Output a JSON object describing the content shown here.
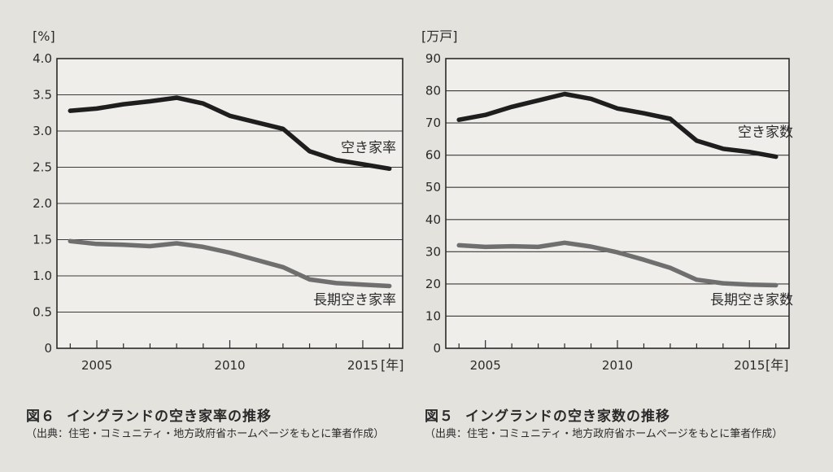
{
  "chart_data": [
    {
      "type": "line",
      "figure_number": "図６",
      "title": "イングランドの空き家率の推移",
      "source_note": "（出典：住宅・コミュニティ・地方政府省ホームページをもとに筆者作成）",
      "ylabel": "[%]",
      "xlabel": "[年]",
      "ylim": [
        0,
        4.0
      ],
      "yticks": [
        "0",
        "0.5",
        "1.0",
        "1.5",
        "2.0",
        "2.5",
        "3.0",
        "3.5",
        "4.0"
      ],
      "xlim": [
        2003.5,
        2016.5
      ],
      "xticks": [
        {
          "value": 2005,
          "label": "2005"
        },
        {
          "value": 2010,
          "label": "2010"
        },
        {
          "value": 2015,
          "label": "2015"
        }
      ],
      "x": [
        2004,
        2005,
        2006,
        2007,
        2008,
        2009,
        2010,
        2011,
        2012,
        2013,
        2014,
        2015,
        2016
      ],
      "series": [
        {
          "name": "空き家率",
          "color": "#1e1e1e",
          "values": [
            3.28,
            3.31,
            3.37,
            3.41,
            3.46,
            3.38,
            3.21,
            3.12,
            3.03,
            2.72,
            2.6,
            2.54,
            2.48
          ]
        },
        {
          "name": "長期空き家率",
          "color": "#6f6f6f",
          "values": [
            1.48,
            1.44,
            1.43,
            1.41,
            1.45,
            1.4,
            1.32,
            1.22,
            1.12,
            0.95,
            0.9,
            0.88,
            0.86
          ]
        }
      ]
    },
    {
      "type": "line",
      "figure_number": "図５",
      "title": "イングランドの空き家数の推移",
      "source_note": "（出典：住宅・コミュニティ・地方政府省ホームページをもとに筆者作成）",
      "ylabel": "[万戸]",
      "xlabel": "[年]",
      "ylim": [
        0,
        90
      ],
      "yticks": [
        "0",
        "10",
        "20",
        "30",
        "40",
        "50",
        "60",
        "70",
        "80",
        "90"
      ],
      "xlim": [
        2003.5,
        2016.5
      ],
      "xticks": [
        {
          "value": 2005,
          "label": "2005"
        },
        {
          "value": 2010,
          "label": "2010"
        },
        {
          "value": 2015,
          "label": "2015"
        }
      ],
      "x": [
        2004,
        2005,
        2006,
        2007,
        2008,
        2009,
        2010,
        2011,
        2012,
        2013,
        2014,
        2015,
        2016
      ],
      "series": [
        {
          "name": "空き家数",
          "color": "#1e1e1e",
          "values": [
            71,
            72.5,
            75,
            77,
            79,
            77.5,
            74.5,
            73,
            71.3,
            64.5,
            62,
            61,
            59.5
          ]
        },
        {
          "name": "長期空き家数",
          "color": "#6f6f6f",
          "values": [
            32,
            31.5,
            31.7,
            31.5,
            32.8,
            31.6,
            29.8,
            27.5,
            25,
            21.3,
            20.2,
            19.8,
            19.6
          ]
        }
      ]
    }
  ]
}
